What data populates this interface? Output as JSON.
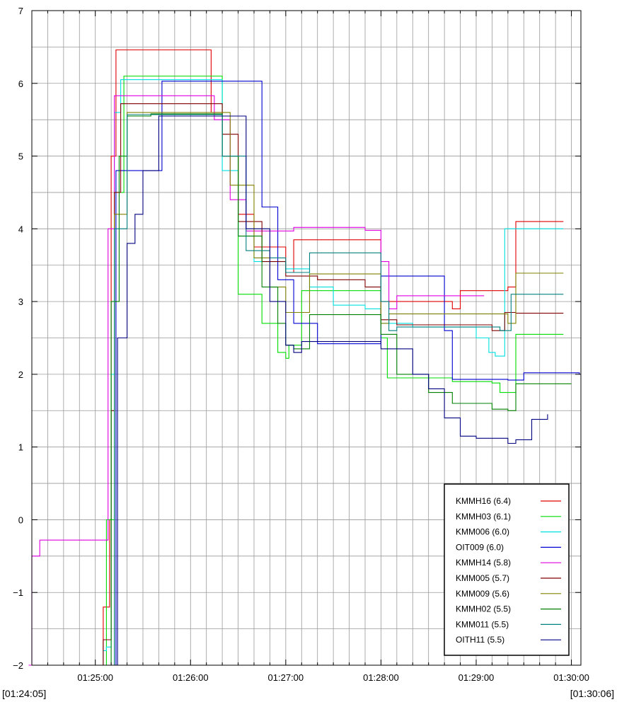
{
  "chart_data": {
    "type": "line",
    "title": "",
    "xlabel": "",
    "ylabel": "",
    "xlim": [
      "01:24:20",
      "01:30:06"
    ],
    "ylim": [
      -2,
      7
    ],
    "grid": true,
    "legend_position": "bottom-right",
    "x_range_labels": {
      "start": "[01:24:05]",
      "end": "[01:30:06]"
    },
    "x_ticks": [
      "01:25:00",
      "01:26:00",
      "01:27:00",
      "01:28:00",
      "01:29:00",
      "01:30:00"
    ],
    "y_ticks": [
      -2,
      -1,
      0,
      1,
      2,
      3,
      4,
      5,
      6,
      7
    ],
    "series": [
      {
        "name": "KMMH16 (6.4)",
        "color": "#e00000",
        "x": [
          "01:25:00",
          "01:25:05",
          "01:25:08",
          "01:25:09",
          "01:25:10",
          "01:25:13",
          "01:25:20",
          "01:26:10",
          "01:26:13",
          "01:26:20",
          "01:26:30",
          "01:26:40",
          "01:27:00",
          "01:27:05",
          "01:27:10",
          "01:27:50",
          "01:28:00",
          "01:28:08",
          "01:28:45",
          "01:28:50",
          "01:29:00",
          "01:29:20",
          "01:29:25",
          "01:29:55"
        ],
        "y": [
          -2.0,
          -1.2,
          -1.2,
          0.0,
          5.0,
          6.46,
          6.46,
          6.46,
          5.6,
          5.0,
          4.2,
          3.75,
          3.4,
          3.85,
          3.85,
          3.85,
          3.0,
          3.0,
          2.9,
          3.15,
          3.15,
          3.2,
          4.1,
          4.1
        ]
      },
      {
        "name": "KMMH03 (6.1)",
        "color": "#00dd00",
        "x": [
          "01:25:05",
          "01:25:07",
          "01:25:12",
          "01:25:18",
          "01:26:12",
          "01:26:20",
          "01:26:30",
          "01:26:45",
          "01:26:55",
          "01:27:00",
          "01:27:02",
          "01:27:10",
          "01:27:50",
          "01:28:00",
          "01:28:04",
          "01:28:20",
          "01:28:45",
          "01:29:00",
          "01:29:10",
          "01:29:15",
          "01:29:25",
          "01:29:55"
        ],
        "y": [
          -2.0,
          0.0,
          4.5,
          6.1,
          6.1,
          5.0,
          3.1,
          2.7,
          2.3,
          2.22,
          2.4,
          3.15,
          3.15,
          2.5,
          1.95,
          1.95,
          1.9,
          1.9,
          1.88,
          1.75,
          2.55,
          2.55
        ]
      },
      {
        "name": "KMM006 (6.0)",
        "color": "#00e0e0",
        "x": [
          "01:25:00",
          "01:25:05",
          "01:25:07",
          "01:25:10",
          "01:25:12",
          "01:25:16",
          "01:26:10",
          "01:26:20",
          "01:26:30",
          "01:26:40",
          "01:27:00",
          "01:27:15",
          "01:27:30",
          "01:27:50",
          "01:28:00",
          "01:28:20",
          "01:29:00",
          "01:29:08",
          "01:29:12",
          "01:29:18",
          "01:29:55"
        ],
        "y": [
          -2.0,
          -1.8,
          -1.75,
          2.0,
          5.6,
          6.05,
          6.05,
          4.8,
          3.9,
          3.55,
          3.45,
          3.2,
          2.95,
          2.9,
          2.7,
          2.65,
          2.5,
          2.3,
          2.25,
          4.0,
          4.0
        ]
      },
      {
        "name": "OIT009 (6.0)",
        "color": "#0000d0",
        "x": [
          "01:25:12",
          "01:25:13",
          "01:25:42",
          "01:25:45",
          "01:26:35",
          "01:26:45",
          "01:26:55",
          "01:27:05",
          "01:27:20",
          "01:27:35",
          "01:27:50",
          "01:28:00",
          "01:28:05",
          "01:28:35",
          "01:28:40",
          "01:28:45",
          "01:29:20",
          "01:29:30",
          "01:30:05"
        ],
        "y": [
          -2.0,
          4.8,
          6.03,
          6.03,
          6.03,
          4.3,
          3.3,
          2.7,
          2.42,
          2.42,
          2.42,
          3.35,
          3.35,
          3.35,
          2.6,
          1.93,
          1.92,
          2.02,
          2.0
        ]
      },
      {
        "name": "KMMH14 (5.8)",
        "color": "#e000e0",
        "x": [
          "01:24:18",
          "01:24:20",
          "01:24:25",
          "01:25:00",
          "01:25:04",
          "01:25:08",
          "01:25:12",
          "01:25:20",
          "01:26:10",
          "01:26:15",
          "01:26:25",
          "01:26:35",
          "01:26:50",
          "01:27:05",
          "01:27:10",
          "01:27:50",
          "01:28:00",
          "01:28:05",
          "01:28:10",
          "01:28:40",
          "01:29:00",
          "01:29:05"
        ],
        "y": [
          -2.0,
          -0.5,
          -0.28,
          -0.28,
          -0.28,
          4.0,
          5.83,
          5.83,
          5.83,
          5.5,
          4.4,
          3.97,
          3.97,
          4.02,
          4.02,
          3.98,
          3.55,
          2.9,
          3.08,
          3.08,
          3.08,
          3.08
        ]
      },
      {
        "name": "KMM005 (5.7)",
        "color": "#800000",
        "x": [
          "01:25:00",
          "01:25:05",
          "01:25:08",
          "01:25:10",
          "01:25:12",
          "01:25:16",
          "01:26:10",
          "01:26:20",
          "01:26:30",
          "01:26:45",
          "01:27:00",
          "01:27:20",
          "01:27:50",
          "01:28:00",
          "01:28:10",
          "01:28:40",
          "01:29:10",
          "01:29:18",
          "01:29:25",
          "01:29:55"
        ],
        "y": [
          -2.0,
          -1.65,
          -1.65,
          1.5,
          4.5,
          5.72,
          5.72,
          5.3,
          4.1,
          3.55,
          3.35,
          3.3,
          3.2,
          2.75,
          2.68,
          2.68,
          2.6,
          2.85,
          2.84,
          2.84
        ]
      },
      {
        "name": "KMM009 (5.6)",
        "color": "#808000",
        "x": [
          "01:25:10",
          "01:25:12",
          "01:25:20",
          "01:26:10",
          "01:26:25",
          "01:26:40",
          "01:26:50",
          "01:27:00",
          "01:27:15",
          "01:27:40",
          "01:28:00",
          "01:28:05",
          "01:28:10",
          "01:28:40",
          "01:29:05",
          "01:29:20",
          "01:29:25",
          "01:29:55"
        ],
        "y": [
          -2.0,
          4.2,
          5.6,
          5.6,
          4.6,
          3.6,
          3.2,
          2.85,
          3.38,
          3.38,
          2.7,
          2.83,
          2.83,
          2.83,
          2.83,
          2.7,
          3.39,
          3.39
        ]
      },
      {
        "name": "KMMH02 (5.5)",
        "color": "#008000",
        "x": [
          "01:25:08",
          "01:25:10",
          "01:25:15",
          "01:25:20",
          "01:25:35",
          "01:26:10",
          "01:26:20",
          "01:26:30",
          "01:26:45",
          "01:26:55",
          "01:27:00",
          "01:27:05",
          "01:27:15",
          "01:27:40",
          "01:28:00",
          "01:28:10",
          "01:28:30",
          "01:28:45",
          "01:29:10",
          "01:29:20",
          "01:29:25",
          "01:30:00"
        ],
        "y": [
          -2.0,
          3.0,
          5.0,
          5.55,
          5.58,
          5.58,
          5.0,
          3.9,
          3.2,
          2.7,
          2.4,
          2.35,
          2.82,
          2.82,
          2.55,
          2.0,
          1.75,
          1.6,
          1.52,
          1.5,
          1.87,
          1.87
        ]
      },
      {
        "name": "KMM011 (5.5)",
        "color": "#008080",
        "x": [
          "01:25:10",
          "01:25:12",
          "01:25:20",
          "01:26:10",
          "01:26:20",
          "01:26:35",
          "01:26:50",
          "01:27:00",
          "01:27:15",
          "01:27:50",
          "01:28:00",
          "01:28:05",
          "01:28:10",
          "01:29:00",
          "01:29:15",
          "01:29:22",
          "01:29:55"
        ],
        "y": [
          -2.0,
          4.0,
          5.57,
          5.57,
          5.0,
          3.7,
          3.6,
          3.4,
          3.67,
          3.67,
          3.0,
          2.6,
          2.65,
          2.65,
          2.6,
          3.1,
          3.1
        ]
      },
      {
        "name": "OITH11 (5.5)",
        "color": "#000080",
        "x": [
          "01:25:12",
          "01:25:14",
          "01:25:20",
          "01:25:25",
          "01:25:30",
          "01:25:40",
          "01:25:42",
          "01:26:25",
          "01:26:35",
          "01:26:50",
          "01:27:00",
          "01:27:05",
          "01:27:10",
          "01:27:20",
          "01:27:40",
          "01:28:00",
          "01:28:20",
          "01:28:30",
          "01:28:40",
          "01:28:50",
          "01:29:00",
          "01:29:15",
          "01:29:20",
          "01:29:25",
          "01:29:35",
          "01:29:45"
        ],
        "y": [
          -2.0,
          2.5,
          3.8,
          4.2,
          4.8,
          5.55,
          5.55,
          5.55,
          4.0,
          3.0,
          2.4,
          2.3,
          2.45,
          2.45,
          2.45,
          2.35,
          2.0,
          1.8,
          1.4,
          1.15,
          1.12,
          1.12,
          1.05,
          1.1,
          1.38,
          1.45
        ]
      }
    ]
  }
}
